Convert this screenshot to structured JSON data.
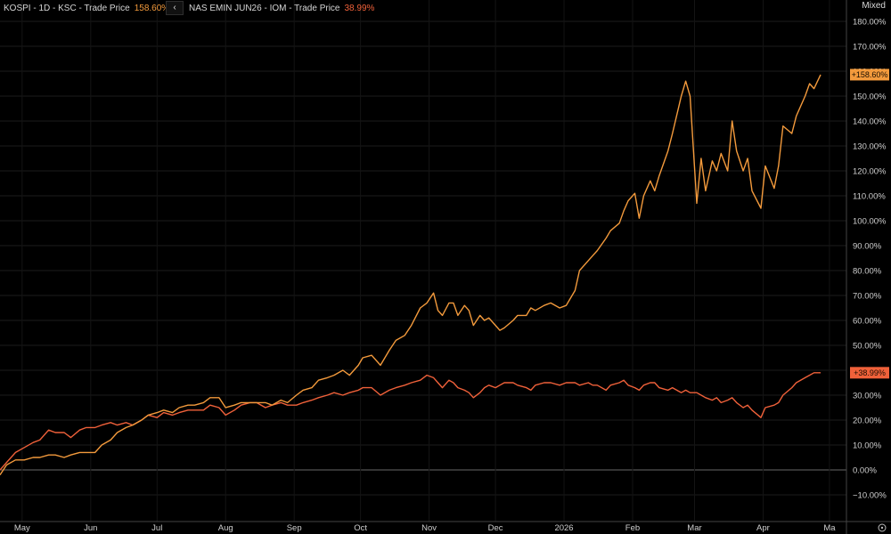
{
  "legend": {
    "s1_label": "KOSPI - 1D - KSC - Trade Price",
    "s1_value": "158.60%",
    "s2_label": "NAS EMIN JUN26 - IOM - Trade Price",
    "s2_value": "38.99%",
    "collapse_icon": "chevron-left-icon"
  },
  "axis_mode": "Mixed",
  "colors": {
    "s1": "#f39a3c",
    "s2": "#f0613a",
    "background": "#000000"
  },
  "chart_data": {
    "type": "line",
    "ylim": [
      -15,
      185
    ],
    "y_ticks": [
      -10,
      0,
      10,
      20,
      30,
      40,
      50,
      60,
      70,
      80,
      90,
      100,
      110,
      120,
      130,
      140,
      150,
      160,
      170,
      180
    ],
    "y_tick_labels": [
      "−10.00%",
      "0.00%",
      "10.00%",
      "20.00%",
      "30.00%",
      "40.00%",
      "50.00%",
      "60.00%",
      "70.00%",
      "80.00%",
      "90.00%",
      "100.00%",
      "110.00%",
      "120.00%",
      "130.00%",
      "140.00%",
      "150.00%",
      "160.00%",
      "170.00%",
      "180.00%"
    ],
    "x_ticks": [
      "May",
      "Jun",
      "Jul",
      "Aug",
      "Sep",
      "Oct",
      "Nov",
      "Dec",
      "2026",
      "Feb",
      "Mar",
      "Apr",
      "Ma"
    ],
    "x_tick_dates": [
      "2025-05-01",
      "2025-06-01",
      "2025-07-01",
      "2025-08-01",
      "2025-09-01",
      "2025-10-01",
      "2025-11-01",
      "2025-12-01",
      "2026-01-01",
      "2026-02-01",
      "2026-03-01",
      "2026-04-01",
      "2026-05-01"
    ],
    "grid": true,
    "zero_line": true,
    "series": [
      {
        "name": "KOSPI - 1D - KSC - Trade Price",
        "last_label": "+158.60%",
        "color": "#f39a3c",
        "points": [
          [
            "2025-04-21",
            -2
          ],
          [
            "2025-04-24",
            2
          ],
          [
            "2025-04-28",
            4
          ],
          [
            "2025-05-02",
            4
          ],
          [
            "2025-05-06",
            5
          ],
          [
            "2025-05-09",
            5
          ],
          [
            "2025-05-13",
            6
          ],
          [
            "2025-05-16",
            6
          ],
          [
            "2025-05-20",
            5
          ],
          [
            "2025-05-23",
            6
          ],
          [
            "2025-05-27",
            7
          ],
          [
            "2025-05-30",
            7
          ],
          [
            "2025-06-03",
            7
          ],
          [
            "2025-06-06",
            10
          ],
          [
            "2025-06-10",
            12
          ],
          [
            "2025-06-13",
            15
          ],
          [
            "2025-06-17",
            17
          ],
          [
            "2025-06-20",
            18
          ],
          [
            "2025-06-24",
            20
          ],
          [
            "2025-06-27",
            22
          ],
          [
            "2025-07-01",
            23
          ],
          [
            "2025-07-04",
            24
          ],
          [
            "2025-07-08",
            23
          ],
          [
            "2025-07-11",
            25
          ],
          [
            "2025-07-15",
            26
          ],
          [
            "2025-07-18",
            26
          ],
          [
            "2025-07-22",
            27
          ],
          [
            "2025-07-25",
            29
          ],
          [
            "2025-07-29",
            29
          ],
          [
            "2025-08-01",
            25
          ],
          [
            "2025-08-05",
            26
          ],
          [
            "2025-08-08",
            27
          ],
          [
            "2025-08-12",
            27
          ],
          [
            "2025-08-15",
            27
          ],
          [
            "2025-08-19",
            27
          ],
          [
            "2025-08-22",
            26
          ],
          [
            "2025-08-26",
            28
          ],
          [
            "2025-08-29",
            27
          ],
          [
            "2025-09-02",
            30
          ],
          [
            "2025-09-05",
            32
          ],
          [
            "2025-09-09",
            33
          ],
          [
            "2025-09-12",
            36
          ],
          [
            "2025-09-16",
            37
          ],
          [
            "2025-09-19",
            38
          ],
          [
            "2025-09-23",
            40
          ],
          [
            "2025-09-26",
            38
          ],
          [
            "2025-09-30",
            42
          ],
          [
            "2025-10-02",
            45
          ],
          [
            "2025-10-06",
            46
          ],
          [
            "2025-10-10",
            42
          ],
          [
            "2025-10-14",
            48
          ],
          [
            "2025-10-17",
            52
          ],
          [
            "2025-10-21",
            54
          ],
          [
            "2025-10-24",
            58
          ],
          [
            "2025-10-28",
            65
          ],
          [
            "2025-10-31",
            67
          ],
          [
            "2025-11-03",
            71
          ],
          [
            "2025-11-05",
            64
          ],
          [
            "2025-11-07",
            62
          ],
          [
            "2025-11-10",
            67
          ],
          [
            "2025-11-12",
            67
          ],
          [
            "2025-11-14",
            62
          ],
          [
            "2025-11-17",
            66
          ],
          [
            "2025-11-19",
            64
          ],
          [
            "2025-11-21",
            58
          ],
          [
            "2025-11-24",
            62
          ],
          [
            "2025-11-26",
            60
          ],
          [
            "2025-11-28",
            61
          ],
          [
            "2025-12-01",
            58
          ],
          [
            "2025-12-03",
            56
          ],
          [
            "2025-12-05",
            57
          ],
          [
            "2025-12-09",
            60
          ],
          [
            "2025-12-11",
            62
          ],
          [
            "2025-12-15",
            62
          ],
          [
            "2025-12-17",
            65
          ],
          [
            "2025-12-19",
            64
          ],
          [
            "2025-12-23",
            66
          ],
          [
            "2025-12-26",
            67
          ],
          [
            "2025-12-30",
            65
          ],
          [
            "2026-01-02",
            66
          ],
          [
            "2026-01-06",
            72
          ],
          [
            "2026-01-08",
            80
          ],
          [
            "2026-01-12",
            84
          ],
          [
            "2026-01-14",
            86
          ],
          [
            "2026-01-16",
            88
          ],
          [
            "2026-01-20",
            93
          ],
          [
            "2026-01-22",
            96
          ],
          [
            "2026-01-26",
            99
          ],
          [
            "2026-01-28",
            104
          ],
          [
            "2026-01-30",
            108
          ],
          [
            "2026-02-02",
            111
          ],
          [
            "2026-02-04",
            101
          ],
          [
            "2026-02-06",
            110
          ],
          [
            "2026-02-09",
            116
          ],
          [
            "2026-02-11",
            112
          ],
          [
            "2026-02-13",
            118
          ],
          [
            "2026-02-17",
            128
          ],
          [
            "2026-02-19",
            135
          ],
          [
            "2026-02-23",
            150
          ],
          [
            "2026-02-25",
            156
          ],
          [
            "2026-02-27",
            150
          ],
          [
            "2026-03-02",
            107
          ],
          [
            "2026-03-04",
            125
          ],
          [
            "2026-03-06",
            112
          ],
          [
            "2026-03-09",
            124
          ],
          [
            "2026-03-11",
            120
          ],
          [
            "2026-03-13",
            127
          ],
          [
            "2026-03-16",
            120
          ],
          [
            "2026-03-18",
            140
          ],
          [
            "2026-03-20",
            128
          ],
          [
            "2026-03-23",
            120
          ],
          [
            "2026-03-25",
            125
          ],
          [
            "2026-03-27",
            112
          ],
          [
            "2026-03-31",
            105
          ],
          [
            "2026-04-02",
            122
          ],
          [
            "2026-04-06",
            113
          ],
          [
            "2026-04-08",
            122
          ],
          [
            "2026-04-10",
            138
          ],
          [
            "2026-04-14",
            135
          ],
          [
            "2026-04-16",
            142
          ],
          [
            "2026-04-20",
            150
          ],
          [
            "2026-04-22",
            155
          ],
          [
            "2026-04-24",
            153
          ],
          [
            "2026-04-27",
            158.6
          ]
        ]
      },
      {
        "name": "NAS EMIN JUN26 - IOM - Trade Price",
        "last_label": "+38.99%",
        "color": "#f0613a",
        "points": [
          [
            "2025-04-21",
            0
          ],
          [
            "2025-04-24",
            3
          ],
          [
            "2025-04-28",
            7
          ],
          [
            "2025-05-02",
            9
          ],
          [
            "2025-05-06",
            11
          ],
          [
            "2025-05-09",
            12
          ],
          [
            "2025-05-13",
            16
          ],
          [
            "2025-05-16",
            15
          ],
          [
            "2025-05-20",
            15
          ],
          [
            "2025-05-23",
            13
          ],
          [
            "2025-05-27",
            16
          ],
          [
            "2025-05-30",
            17
          ],
          [
            "2025-06-03",
            17
          ],
          [
            "2025-06-06",
            18
          ],
          [
            "2025-06-10",
            19
          ],
          [
            "2025-06-13",
            18
          ],
          [
            "2025-06-17",
            19
          ],
          [
            "2025-06-20",
            18
          ],
          [
            "2025-06-24",
            20
          ],
          [
            "2025-06-27",
            22
          ],
          [
            "2025-07-01",
            21
          ],
          [
            "2025-07-04",
            23
          ],
          [
            "2025-07-08",
            22
          ],
          [
            "2025-07-11",
            23
          ],
          [
            "2025-07-15",
            24
          ],
          [
            "2025-07-18",
            24
          ],
          [
            "2025-07-22",
            24
          ],
          [
            "2025-07-25",
            26
          ],
          [
            "2025-07-29",
            25
          ],
          [
            "2025-08-01",
            22
          ],
          [
            "2025-08-05",
            24
          ],
          [
            "2025-08-08",
            26
          ],
          [
            "2025-08-12",
            27
          ],
          [
            "2025-08-15",
            27
          ],
          [
            "2025-08-19",
            25
          ],
          [
            "2025-08-22",
            26
          ],
          [
            "2025-08-26",
            27
          ],
          [
            "2025-08-29",
            26
          ],
          [
            "2025-09-02",
            26
          ],
          [
            "2025-09-05",
            27
          ],
          [
            "2025-09-09",
            28
          ],
          [
            "2025-09-12",
            29
          ],
          [
            "2025-09-16",
            30
          ],
          [
            "2025-09-19",
            31
          ],
          [
            "2025-09-23",
            30
          ],
          [
            "2025-09-26",
            31
          ],
          [
            "2025-09-30",
            32
          ],
          [
            "2025-10-02",
            33
          ],
          [
            "2025-10-06",
            33
          ],
          [
            "2025-10-10",
            30
          ],
          [
            "2025-10-14",
            32
          ],
          [
            "2025-10-17",
            33
          ],
          [
            "2025-10-21",
            34
          ],
          [
            "2025-10-24",
            35
          ],
          [
            "2025-10-28",
            36
          ],
          [
            "2025-10-31",
            38
          ],
          [
            "2025-11-03",
            37
          ],
          [
            "2025-11-05",
            35
          ],
          [
            "2025-11-07",
            33
          ],
          [
            "2025-11-10",
            36
          ],
          [
            "2025-11-12",
            35
          ],
          [
            "2025-11-14",
            33
          ],
          [
            "2025-11-17",
            32
          ],
          [
            "2025-11-19",
            31
          ],
          [
            "2025-11-21",
            29
          ],
          [
            "2025-11-24",
            31
          ],
          [
            "2025-11-26",
            33
          ],
          [
            "2025-11-28",
            34
          ],
          [
            "2025-12-01",
            33
          ],
          [
            "2025-12-03",
            34
          ],
          [
            "2025-12-05",
            35
          ],
          [
            "2025-12-09",
            35
          ],
          [
            "2025-12-11",
            34
          ],
          [
            "2025-12-15",
            33
          ],
          [
            "2025-12-17",
            32
          ],
          [
            "2025-12-19",
            34
          ],
          [
            "2025-12-23",
            35
          ],
          [
            "2025-12-26",
            35
          ],
          [
            "2025-12-30",
            34
          ],
          [
            "2026-01-02",
            35
          ],
          [
            "2026-01-06",
            35
          ],
          [
            "2026-01-08",
            34
          ],
          [
            "2026-01-12",
            35
          ],
          [
            "2026-01-14",
            34
          ],
          [
            "2026-01-16",
            34
          ],
          [
            "2026-01-20",
            32
          ],
          [
            "2026-01-22",
            34
          ],
          [
            "2026-01-26",
            35
          ],
          [
            "2026-01-28",
            36
          ],
          [
            "2026-01-30",
            34
          ],
          [
            "2026-02-02",
            33
          ],
          [
            "2026-02-04",
            32
          ],
          [
            "2026-02-06",
            34
          ],
          [
            "2026-02-09",
            35
          ],
          [
            "2026-02-11",
            35
          ],
          [
            "2026-02-13",
            33
          ],
          [
            "2026-02-17",
            32
          ],
          [
            "2026-02-19",
            33
          ],
          [
            "2026-02-23",
            31
          ],
          [
            "2026-02-25",
            32
          ],
          [
            "2026-02-27",
            31
          ],
          [
            "2026-03-02",
            31
          ],
          [
            "2026-03-04",
            30
          ],
          [
            "2026-03-06",
            29
          ],
          [
            "2026-03-09",
            28
          ],
          [
            "2026-03-11",
            29
          ],
          [
            "2026-03-13",
            27
          ],
          [
            "2026-03-16",
            28
          ],
          [
            "2026-03-18",
            29
          ],
          [
            "2026-03-20",
            27
          ],
          [
            "2026-03-23",
            25
          ],
          [
            "2026-03-25",
            26
          ],
          [
            "2026-03-27",
            24
          ],
          [
            "2026-03-31",
            21
          ],
          [
            "2026-04-02",
            25
          ],
          [
            "2026-04-06",
            26
          ],
          [
            "2026-04-08",
            27
          ],
          [
            "2026-04-10",
            30
          ],
          [
            "2026-04-14",
            33
          ],
          [
            "2026-04-16",
            35
          ],
          [
            "2026-04-20",
            37
          ],
          [
            "2026-04-22",
            38
          ],
          [
            "2026-04-24",
            39
          ],
          [
            "2026-04-27",
            38.99
          ]
        ]
      }
    ]
  }
}
